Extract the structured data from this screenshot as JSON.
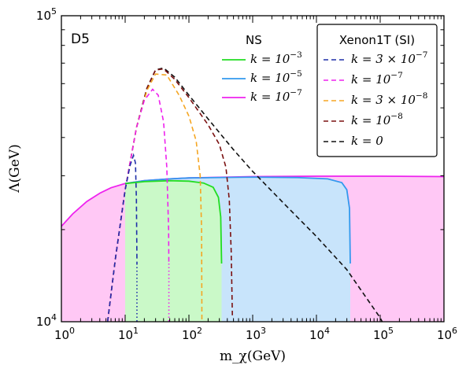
{
  "chart_data": {
    "type": "line",
    "title": "",
    "panel_label": "D5",
    "xlabel": "m_χ(GeV)",
    "ylabel": "Λ(GeV)",
    "xscale": "log",
    "yscale": "log",
    "xlim": [
      1,
      1000000
    ],
    "ylim": [
      10000,
      100000
    ],
    "x_ticks": [
      {
        "value": 1,
        "base": "10",
        "exp": "0"
      },
      {
        "value": 10,
        "base": "10",
        "exp": "1"
      },
      {
        "value": 100,
        "base": "10",
        "exp": "2"
      },
      {
        "value": 1000,
        "base": "10",
        "exp": "3"
      },
      {
        "value": 10000,
        "base": "10",
        "exp": "4"
      },
      {
        "value": 100000,
        "base": "10",
        "exp": "5"
      },
      {
        "value": 1000000,
        "base": "10",
        "exp": "6"
      }
    ],
    "y_ticks": [
      {
        "value": 10000,
        "base": "10",
        "exp": "4"
      },
      {
        "value": 100000,
        "base": "10",
        "exp": "5"
      }
    ],
    "grid": false,
    "legends": [
      {
        "title": "NS",
        "placement": "top-center",
        "framed": false,
        "entries": [
          {
            "k": "k = 10",
            "exp": "−3",
            "color": "#22dd22",
            "style": "solid"
          },
          {
            "k": "k = 10",
            "exp": "−5",
            "color": "#3399ee",
            "style": "solid"
          },
          {
            "k": "k = 10",
            "exp": "−7",
            "color": "#ee22ee",
            "style": "solid"
          }
        ]
      },
      {
        "title": "Xenon1T (SI)",
        "placement": "top-right",
        "framed": true,
        "entries": [
          {
            "k": "k = 3 × 10",
            "exp": "−7",
            "color": "#1f2fa8",
            "style": "dashed"
          },
          {
            "k": "k = 10",
            "exp": "−7",
            "color": "#ee22ee",
            "style": "dashed"
          },
          {
            "k": "k = 3 × 10",
            "exp": "−8",
            "color": "#f5a623",
            "style": "dashed"
          },
          {
            "k": "k = 10",
            "exp": "−8",
            "color": "#7b1010",
            "style": "dashed"
          },
          {
            "k": "k = 0",
            "exp": "",
            "color": "#111111",
            "style": "dashed"
          }
        ]
      }
    ],
    "ns_regions": [
      {
        "name": "NS k=10^-7",
        "color": "#ee22ee",
        "fill": "#ffc8f5",
        "points": [
          [
            1,
            20500
          ],
          [
            1.5,
            22500
          ],
          [
            2.5,
            24700
          ],
          [
            4,
            26300
          ],
          [
            6,
            27400
          ],
          [
            10,
            28300
          ],
          [
            20,
            28900
          ],
          [
            50,
            29300
          ],
          [
            100,
            29500
          ],
          [
            1000,
            29800
          ],
          [
            10000,
            29900
          ],
          [
            100000,
            29900
          ],
          [
            1000000,
            29800
          ]
        ]
      },
      {
        "name": "NS k=10^-5",
        "color": "#3399ee",
        "fill": "#c8e4fb",
        "points": [
          [
            10,
            28300
          ],
          [
            20,
            28900
          ],
          [
            50,
            29300
          ],
          [
            100,
            29500
          ],
          [
            1000,
            29700
          ],
          [
            5000,
            29600
          ],
          [
            15000,
            29300
          ],
          [
            25000,
            28500
          ],
          [
            30000,
            27000
          ],
          [
            33000,
            23500
          ],
          [
            34000,
            15500
          ]
        ]
      },
      {
        "name": "NS k=10^-3",
        "color": "#22dd22",
        "fill": "#caf9c8",
        "points": [
          [
            10,
            28300
          ],
          [
            20,
            28700
          ],
          [
            50,
            28900
          ],
          [
            100,
            28800
          ],
          [
            170,
            28400
          ],
          [
            240,
            27500
          ],
          [
            290,
            25500
          ],
          [
            315,
            22000
          ],
          [
            325,
            15500
          ]
        ]
      }
    ],
    "xenon_curves": [
      {
        "name": "k=0",
        "color": "#111111",
        "points": [
          [
            5.3,
            10000
          ],
          [
            7,
            16000
          ],
          [
            10,
            27000
          ],
          [
            15,
            43000
          ],
          [
            22,
            58000
          ],
          [
            30,
            66500
          ],
          [
            40,
            67500
          ],
          [
            60,
            63000
          ],
          [
            100,
            55000
          ],
          [
            200,
            46000
          ],
          [
            500,
            36500
          ],
          [
            1000,
            31000
          ],
          [
            3000,
            24500
          ],
          [
            10000,
            19000
          ],
          [
            30000,
            14800
          ],
          [
            100000,
            10300
          ],
          [
            110000,
            9900
          ]
        ]
      },
      {
        "name": "k=10^-8",
        "color": "#7b1010",
        "points": [
          [
            5.3,
            10000
          ],
          [
            7,
            16000
          ],
          [
            10,
            27000
          ],
          [
            15,
            43000
          ],
          [
            22,
            58000
          ],
          [
            30,
            66500
          ],
          [
            40,
            67000
          ],
          [
            60,
            62000
          ],
          [
            100,
            54000
          ],
          [
            200,
            44000
          ],
          [
            300,
            38000
          ],
          [
            380,
            32000
          ],
          [
            430,
            25000
          ],
          [
            460,
            17000
          ],
          [
            480,
            10500
          ]
        ]
      },
      {
        "name": "k=3x10^-8",
        "color": "#f5a623",
        "points": [
          [
            5.3,
            10000
          ],
          [
            7,
            16000
          ],
          [
            10,
            27000
          ],
          [
            15,
            43000
          ],
          [
            22,
            57000
          ],
          [
            30,
            64500
          ],
          [
            45,
            64000
          ],
          [
            70,
            55000
          ],
          [
            100,
            47000
          ],
          [
            130,
            39000
          ],
          [
            150,
            30000
          ],
          [
            158,
            20000
          ],
          [
            160,
            10000
          ]
        ]
      },
      {
        "name": "k=10^-7",
        "color": "#ee22ee",
        "points": [
          [
            5.3,
            10000
          ],
          [
            7,
            16000
          ],
          [
            10,
            27000
          ],
          [
            15,
            43000
          ],
          [
            20,
            53000
          ],
          [
            27,
            57500
          ],
          [
            33,
            55000
          ],
          [
            40,
            45000
          ],
          [
            45,
            32000
          ],
          [
            48,
            20000
          ],
          [
            48.5,
            15500
          ]
        ]
      },
      {
        "name": "k=3x10^-7",
        "color": "#1f2fa8",
        "points": [
          [
            5.3,
            10000
          ],
          [
            7,
            16000
          ],
          [
            10,
            27000
          ],
          [
            12,
            32500
          ],
          [
            13.5,
            35000
          ],
          [
            14.5,
            33000
          ],
          [
            15,
            25000
          ],
          [
            15.3,
            15500
          ]
        ]
      }
    ],
    "dotted_drops": [
      {
        "color": "#1f2fa8",
        "x": 15.3,
        "y": [
          15500,
          10000
        ]
      },
      {
        "color": "#ee22ee",
        "x": 48.5,
        "y": [
          15500,
          10000
        ]
      }
    ]
  }
}
